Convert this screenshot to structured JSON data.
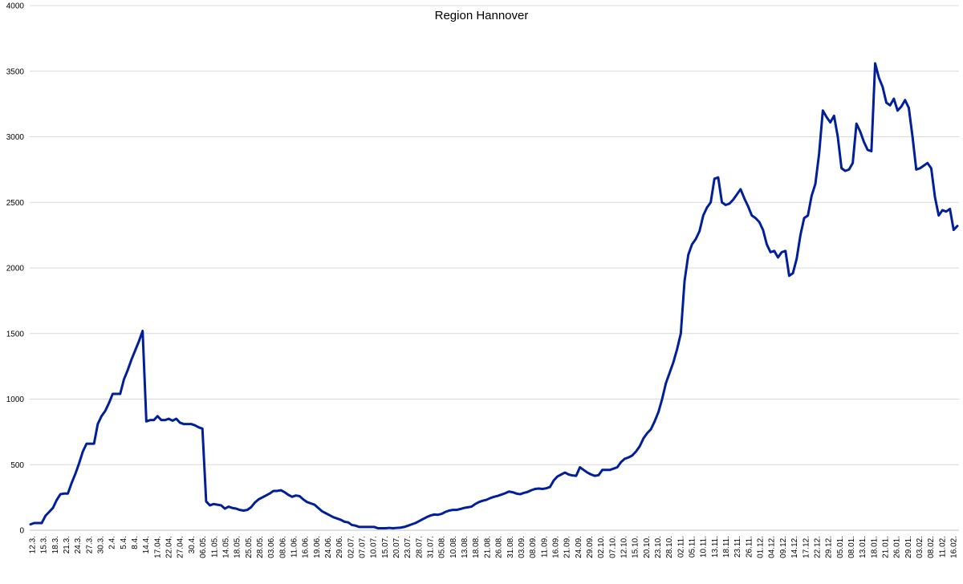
{
  "chart_data": {
    "type": "line",
    "title": "Region Hannover",
    "xlabel": "",
    "ylabel": "",
    "ylim": [
      0,
      4000
    ],
    "yticks": [
      0,
      500,
      1000,
      1500,
      2000,
      2500,
      3000,
      3500,
      4000
    ],
    "grid": true,
    "legend": "none",
    "x_tick_labels": [
      "12.3.",
      "15.3.",
      "18.3.",
      "21.3.",
      "24.3.",
      "27.3.",
      "30.3.",
      "2.4.",
      "5.4.",
      "8.4.",
      "14.4.",
      "17.04.",
      "22.04.",
      "27.04.",
      "30.4.",
      "06.05.",
      "11.05.",
      "14.05.",
      "18.05.",
      "25.05.",
      "28.05.",
      "03.06.",
      "08.06.",
      "11.06.",
      "16.06.",
      "19.06.",
      "24.06.",
      "29.06.",
      "02.07.",
      "07.07.",
      "10.07.",
      "15.07.",
      "20.07.",
      "23.07.",
      "28.07.",
      "31.07.",
      "05.08.",
      "10.08.",
      "13.08.",
      "18.08.",
      "21.08.",
      "26.08.",
      "31.08.",
      "03.09.",
      "08.09.",
      "11.09.",
      "16.09.",
      "21.09.",
      "24.09.",
      "29.09.",
      "02.10.",
      "07.10.",
      "12.10.",
      "15.10.",
      "20.10.",
      "23.10.",
      "28.10.",
      "02.11.",
      "05.11.",
      "10.11.",
      "13.11.",
      "18.11.",
      "23.11.",
      "26.11.",
      "01.12.",
      "04.12.",
      "09.12.",
      "14.12.",
      "17.12.",
      "22.12.",
      "29.12.",
      "05.01.",
      "08.01.",
      "13.01.",
      "18.01.",
      "21.01.",
      "26.01.",
      "29.01.",
      "03.02.",
      "08.02.",
      "11.02.",
      "16.02."
    ],
    "color": "#001f99",
    "series": [
      {
        "values": [
          45,
          55,
          55,
          55,
          110,
          140,
          170,
          230,
          275,
          280,
          280,
          360,
          430,
          510,
          600,
          660,
          660,
          660,
          810,
          870,
          910,
          970,
          1040,
          1040,
          1040,
          1150,
          1220,
          1300,
          1370,
          1440,
          1520,
          830,
          840,
          840,
          870,
          840,
          840,
          850,
          835,
          850,
          820,
          810,
          810,
          810,
          800,
          785,
          775,
          220,
          190,
          200,
          195,
          190,
          165,
          180,
          170,
          165,
          155,
          150,
          155,
          175,
          210,
          235,
          250,
          265,
          280,
          300,
          300,
          305,
          290,
          270,
          255,
          265,
          260,
          235,
          215,
          205,
          195,
          170,
          145,
          130,
          115,
          100,
          90,
          80,
          65,
          60,
          40,
          35,
          25,
          25,
          25,
          25,
          25,
          15,
          15,
          15,
          18,
          15,
          18,
          20,
          25,
          35,
          45,
          55,
          70,
          85,
          100,
          112,
          120,
          118,
          125,
          140,
          150,
          155,
          155,
          162,
          170,
          175,
          180,
          200,
          215,
          225,
          232,
          245,
          255,
          262,
          272,
          282,
          295,
          290,
          280,
          275,
          285,
          292,
          305,
          315,
          318,
          315,
          320,
          330,
          380,
          410,
          425,
          440,
          425,
          418,
          415,
          480,
          460,
          440,
          425,
          415,
          420,
          460,
          460,
          460,
          470,
          480,
          520,
          545,
          555,
          570,
          600,
          640,
          700,
          740,
          770,
          830,
          900,
          1000,
          1120,
          1200,
          1280,
          1380,
          1500,
          1900,
          2100,
          2180,
          2220,
          2280,
          2400,
          2460,
          2500,
          2680,
          2690,
          2500,
          2480,
          2490,
          2520,
          2560,
          2600,
          2530,
          2470,
          2400,
          2380,
          2350,
          2290,
          2180,
          2120,
          2130,
          2080,
          2120,
          2130,
          1940,
          1960,
          2070,
          2250,
          2380,
          2400,
          2550,
          2640,
          2870,
          3200,
          3150,
          3110,
          3160,
          3000,
          2760,
          2740,
          2750,
          2800,
          3100,
          3040,
          2960,
          2900,
          2890,
          3560,
          3450,
          3380,
          3260,
          3240,
          3290,
          3200,
          3230,
          3280,
          3220,
          3000,
          2750,
          2760,
          2780,
          2800,
          2760,
          2540,
          2400,
          2440,
          2430,
          2450,
          2290,
          2320
        ]
      }
    ]
  }
}
